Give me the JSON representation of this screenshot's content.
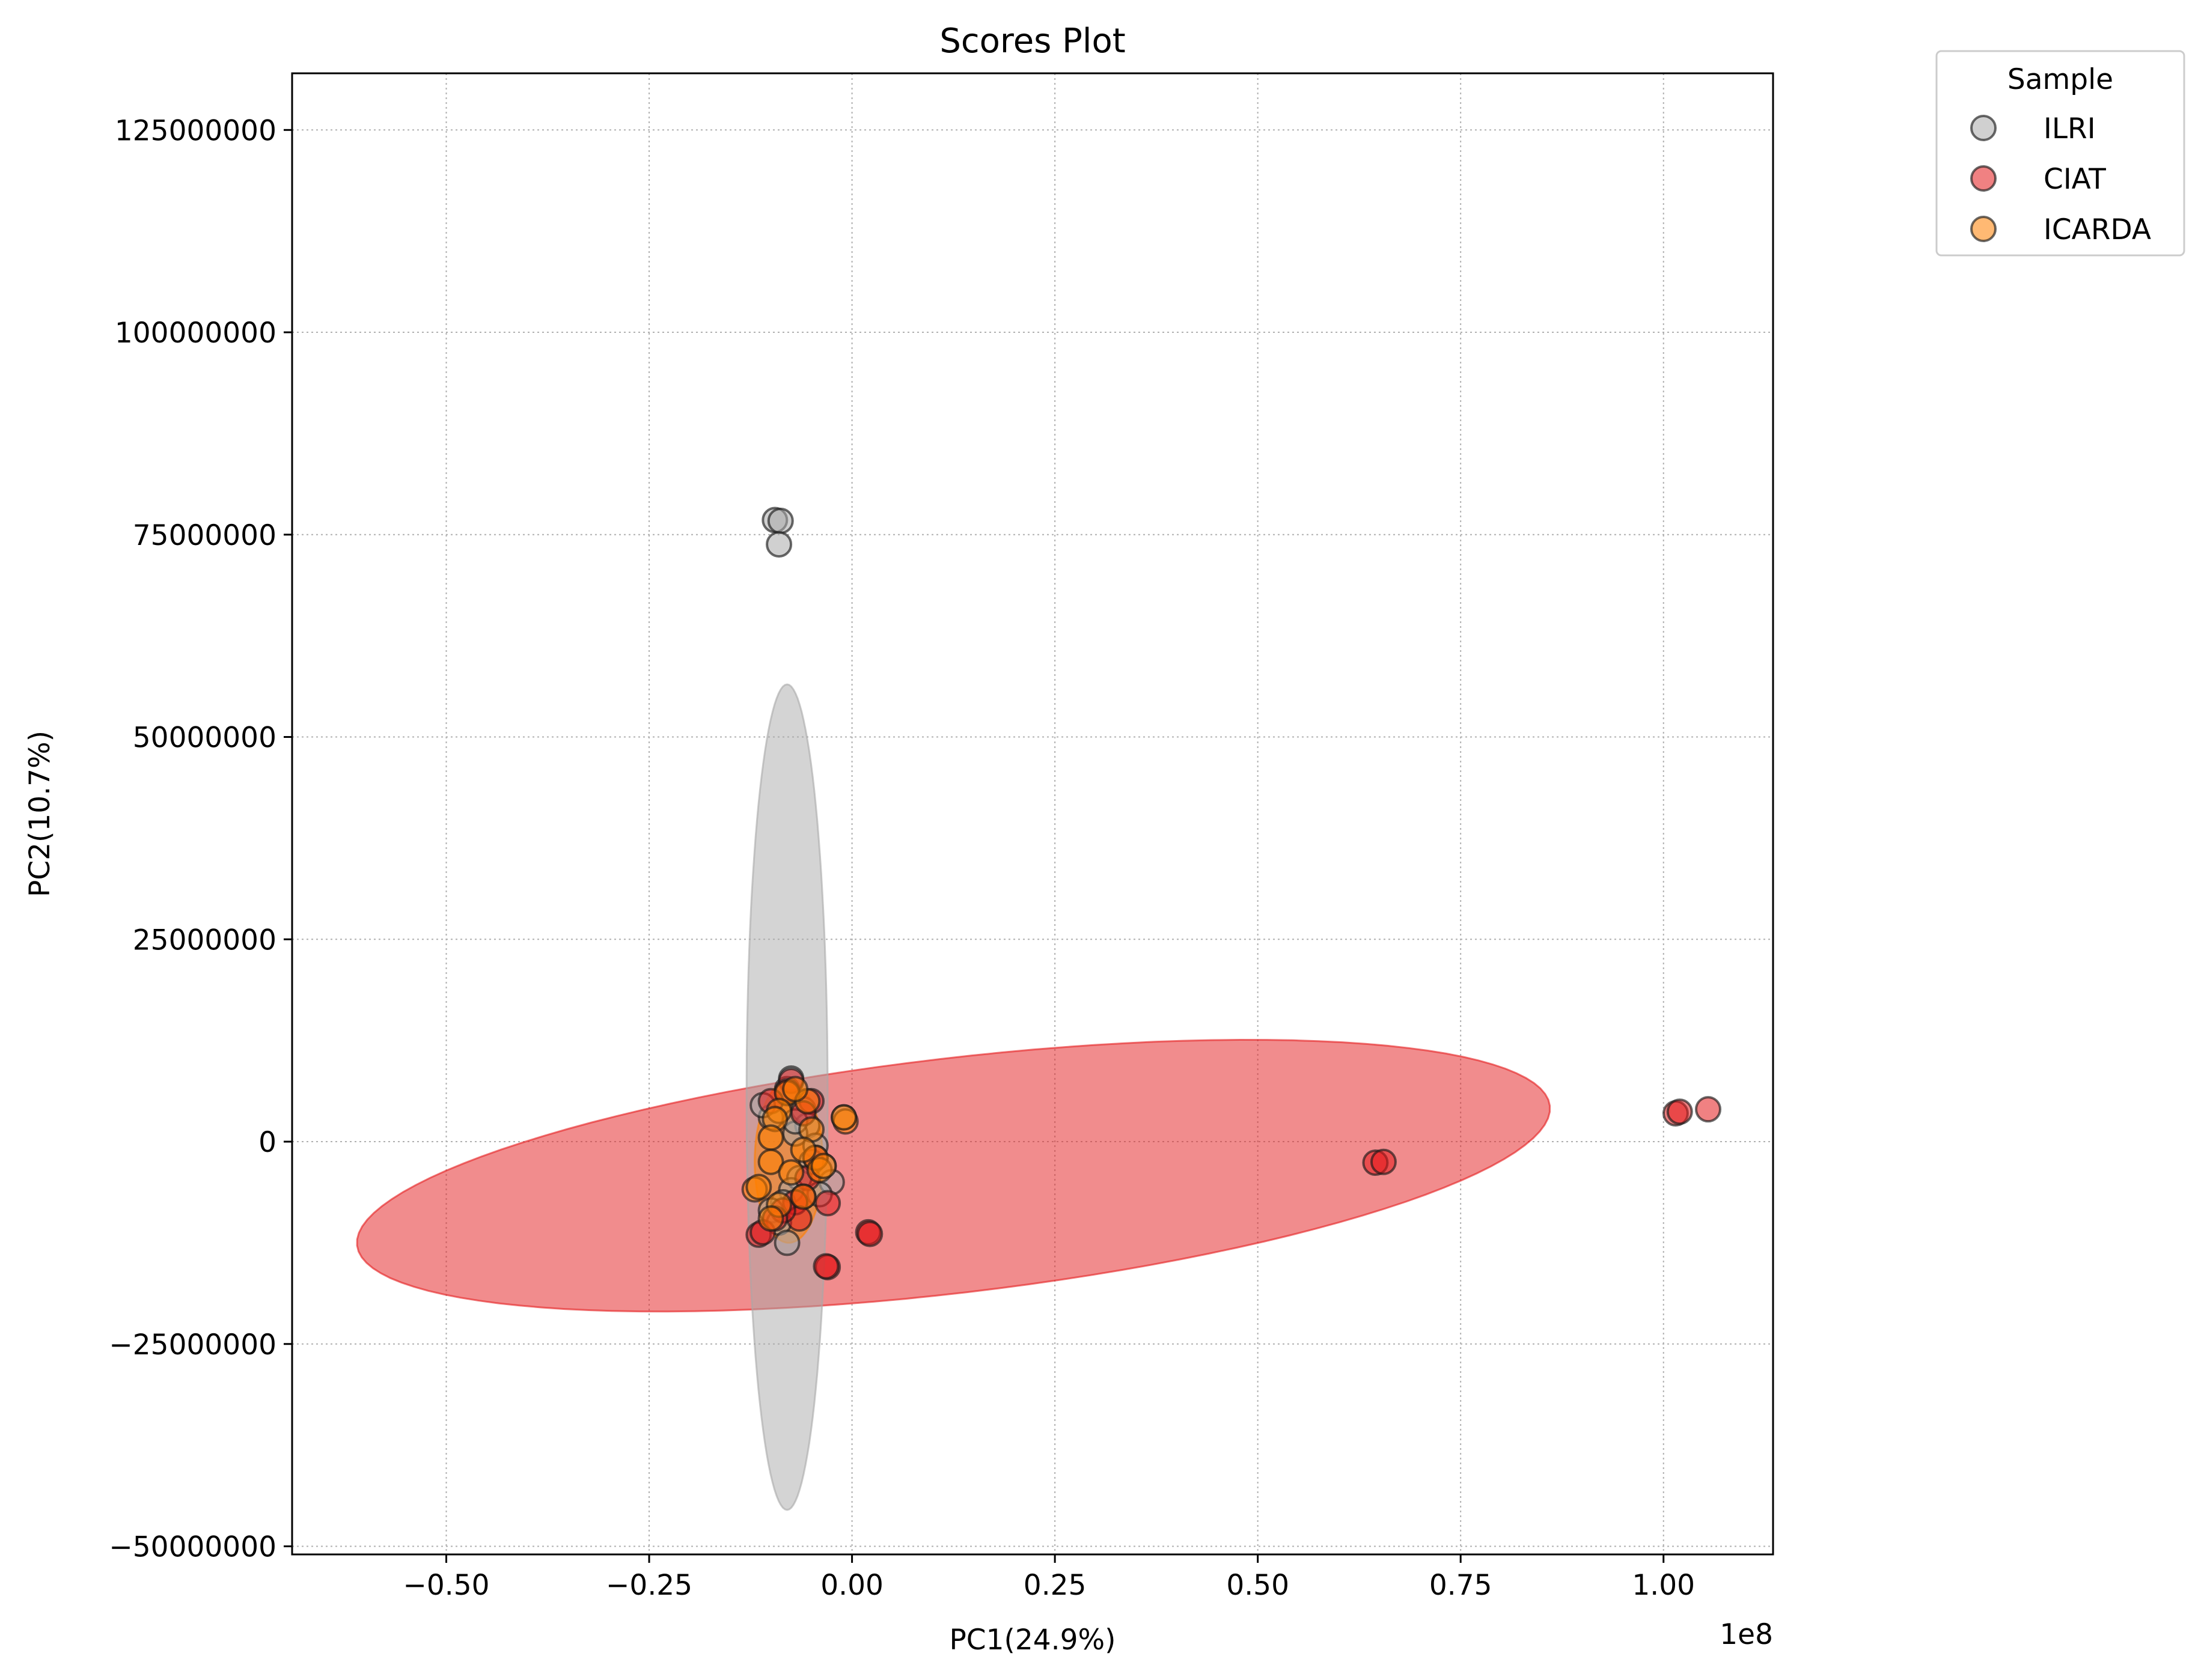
{
  "chart_data": {
    "type": "scatter",
    "title": "Scores Plot",
    "xlabel": "PC1(24.9%)",
    "ylabel": "PC2(10.7%)",
    "x_offset_label": "1e8",
    "xlim": [
      -0.69,
      1.135
    ],
    "ylim": [
      -51000000,
      132000000
    ],
    "x_ticks": [
      -0.5,
      -0.25,
      0.0,
      0.25,
      0.5,
      0.75,
      1.0
    ],
    "x_tick_labels": [
      "−0.50",
      "−0.25",
      "0.00",
      "0.25",
      "0.50",
      "0.75",
      "1.00"
    ],
    "y_ticks": [
      125000000,
      100000000,
      75000000,
      50000000,
      25000000,
      0,
      -25000000,
      -50000000
    ],
    "y_tick_labels": [
      "125000000",
      "100000000",
      "75000000",
      "50000000",
      "25000000",
      "0",
      "−25000000",
      "−50000000"
    ],
    "grid": true,
    "legend": {
      "title": "Sample",
      "placement": "outside-top-right",
      "entries": [
        "ILRI",
        "CIAT",
        "ICARDA"
      ]
    },
    "series": [
      {
        "name": "ILRI",
        "color": "#a9a9a9",
        "ellipse": {
          "cx": -0.08,
          "cy": 5500000,
          "rx": 0.05,
          "ry": 51000000,
          "angle": 0
        },
        "points": [
          [
            -0.095,
            76800000
          ],
          [
            -0.088,
            76700000
          ],
          [
            -0.09,
            73800000
          ],
          [
            -0.075,
            7800000
          ],
          [
            -0.08,
            6500000
          ],
          [
            -0.06,
            4000000
          ],
          [
            -0.055,
            2000000
          ],
          [
            -0.07,
            1000000
          ],
          [
            -0.045,
            -500000
          ],
          [
            -0.035,
            -3000000
          ],
          [
            -0.05,
            -2500000
          ],
          [
            -0.065,
            -4500000
          ],
          [
            -0.075,
            -6000000
          ],
          [
            -0.085,
            -7500000
          ],
          [
            -0.1,
            -8500000
          ],
          [
            -0.09,
            -10000000
          ],
          [
            -0.08,
            -12500000
          ],
          [
            -0.1,
            3000000
          ],
          [
            -0.11,
            4500000
          ],
          [
            -0.01,
            3000000
          ],
          [
            -0.025,
            -5000000
          ],
          [
            -0.04,
            -6500000
          ],
          [
            -0.07,
            2500000
          ]
        ]
      },
      {
        "name": "CIAT",
        "color": "#e41a1c",
        "ellipse": {
          "cx": 0.125,
          "cy": -4200000,
          "rx": 0.74,
          "ry": 14500000,
          "angle": 6.7
        },
        "points": [
          [
            1.015,
            3500000
          ],
          [
            1.02,
            3700000
          ],
          [
            1.055,
            4000000
          ],
          [
            0.645,
            -2600000
          ],
          [
            0.655,
            -2500000
          ],
          [
            -0.075,
            7500000
          ],
          [
            -0.08,
            6200000
          ],
          [
            -0.05,
            5000000
          ],
          [
            -0.06,
            3500000
          ],
          [
            -0.1,
            5000000
          ],
          [
            -0.045,
            -2000000
          ],
          [
            -0.055,
            -4500000
          ],
          [
            -0.06,
            -6800000
          ],
          [
            -0.07,
            -7500000
          ],
          [
            -0.03,
            -7600000
          ],
          [
            -0.065,
            -9500000
          ],
          [
            -0.115,
            -11500000
          ],
          [
            -0.11,
            -11200000
          ],
          [
            0.02,
            -11200000
          ],
          [
            0.022,
            -11400000
          ],
          [
            -0.03,
            -15500000
          ],
          [
            -0.032,
            -15400000
          ],
          [
            -0.085,
            -8500000
          ],
          [
            -0.095,
            -9500000
          ]
        ]
      },
      {
        "name": "ICARDA",
        "color": "#ff7f00",
        "ellipse": {
          "cx": -0.078,
          "cy": -2500000,
          "rx": 0.042,
          "ry": 10000000,
          "angle": 0
        },
        "points": [
          [
            -0.08,
            6000000
          ],
          [
            -0.09,
            3800000
          ],
          [
            -0.095,
            2800000
          ],
          [
            -0.055,
            5000000
          ],
          [
            -0.07,
            6500000
          ],
          [
            -0.008,
            2500000
          ],
          [
            -0.01,
            3000000
          ],
          [
            -0.1,
            500000
          ],
          [
            -0.05,
            1500000
          ],
          [
            -0.1,
            -2500000
          ],
          [
            -0.045,
            -2000000
          ],
          [
            -0.075,
            -3800000
          ],
          [
            -0.04,
            -3500000
          ],
          [
            -0.035,
            -3000000
          ],
          [
            -0.06,
            -6800000
          ],
          [
            -0.12,
            -5900000
          ],
          [
            -0.115,
            -5600000
          ],
          [
            -0.09,
            -7800000
          ],
          [
            -0.1,
            -9500000
          ],
          [
            -0.06,
            -1000000
          ]
        ]
      }
    ]
  }
}
